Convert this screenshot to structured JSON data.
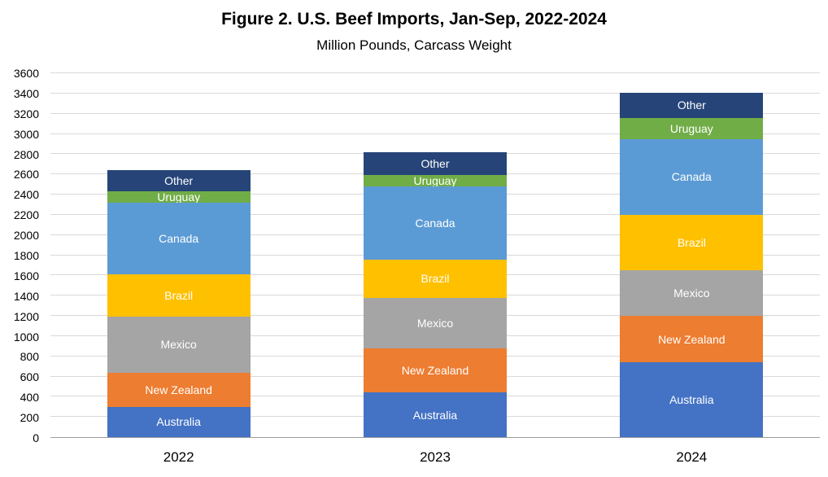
{
  "chart_data": {
    "type": "bar",
    "stacked": true,
    "title": "Figure 2. U.S. Beef Imports, Jan-Sep,  2022-2024",
    "subtitle": "Million Pounds, Carcass Weight",
    "xlabel": "",
    "ylabel": "",
    "categories": [
      "2022",
      "2023",
      "2024"
    ],
    "series": [
      {
        "name": "Australia",
        "color": "#4472C4",
        "values": [
          300,
          440,
          740
        ]
      },
      {
        "name": "New Zealand",
        "color": "#ED7D31",
        "values": [
          340,
          440,
          460
        ]
      },
      {
        "name": "Mexico",
        "color": "#A5A5A5",
        "values": [
          550,
          500,
          450
        ]
      },
      {
        "name": "Brazil",
        "color": "#FFC000",
        "values": [
          420,
          380,
          550
        ]
      },
      {
        "name": "Canada",
        "color": "#5B9BD5",
        "values": [
          710,
          720,
          750
        ]
      },
      {
        "name": "Uruguay",
        "color": "#70AD47",
        "values": [
          110,
          110,
          210
        ]
      },
      {
        "name": "Other",
        "color": "#264478",
        "values": [
          210,
          230,
          250
        ]
      }
    ],
    "totals": [
      2640,
      2820,
      3410
    ],
    "ylim": [
      0,
      3600
    ],
    "ytick_step": 200,
    "grid": true,
    "gridline_color": "#D9D9D9",
    "segment_label_color": "#FFFFFF",
    "legend_position": "none"
  }
}
